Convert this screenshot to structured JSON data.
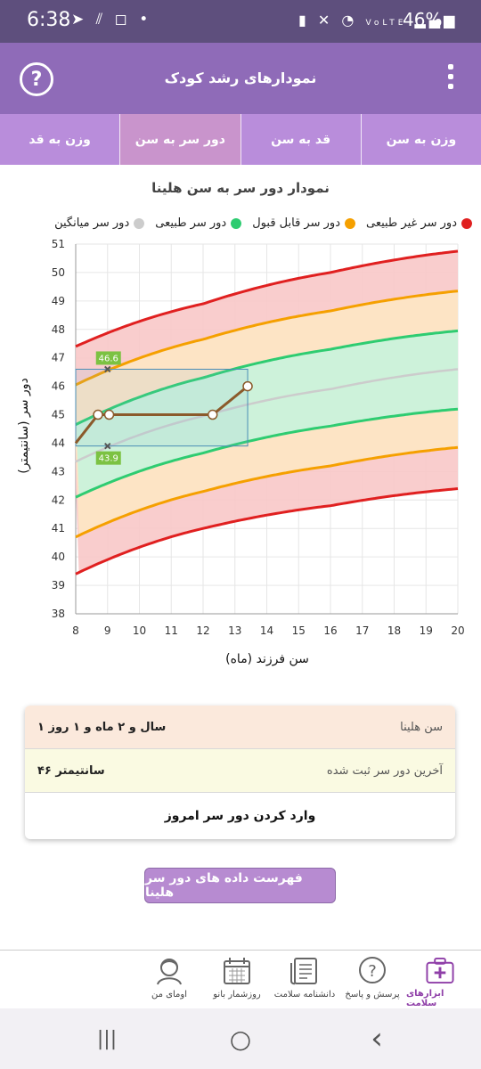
{
  "status_bar": {
    "time": "6:38",
    "left_icons": [
      "telegram-icon",
      "wifi-call-icon",
      "instagram-icon",
      "dot-icon"
    ],
    "right_icons": [
      "nfc-icon",
      "mute-icon",
      "wifi-icon",
      "volte-icon",
      "signal-icon"
    ],
    "battery": "46%"
  },
  "app_bar": {
    "title": "نمودارهای رشد کودک",
    "help_icon": "?",
    "menu_icon": "more-vertical-icon"
  },
  "tabs": [
    {
      "label": "وزن به سن",
      "active": false
    },
    {
      "label": "قد به سن",
      "active": false
    },
    {
      "label": "دور سر به سن",
      "active": true
    },
    {
      "label": "وزن به قد",
      "active": false
    }
  ],
  "chart": {
    "title": "نمودار دور سر به سن هلینا",
    "legend": [
      {
        "label": "دور سر غیر طبیعی",
        "color": "#e02020"
      },
      {
        "label": "دور سر قابل قبول",
        "color": "#f5a000"
      },
      {
        "label": "دور سر طبیعی",
        "color": "#2ecc71"
      },
      {
        "label": "دور سر میانگین",
        "color": "#cccccc"
      }
    ],
    "y_axis_label": "دور سر (سانتیمتر)",
    "x_axis_label": "سن فرزند (ماه)"
  },
  "chart_data": {
    "type": "line",
    "xlim": [
      8,
      20
    ],
    "ylim": [
      38,
      51
    ],
    "x_ticks": [
      8,
      9,
      10,
      11,
      12,
      13,
      14,
      15,
      16,
      17,
      18,
      19,
      20
    ],
    "y_ticks": [
      38,
      39,
      40,
      41,
      42,
      43,
      44,
      45,
      46,
      47,
      48,
      49,
      50,
      51
    ],
    "grid": true,
    "bands": [
      {
        "name": "دور سر غیر طبیعی",
        "color": "#e02020",
        "lower": [
          [
            8,
            39.4
          ],
          [
            12,
            41.0
          ],
          [
            16,
            41.8
          ],
          [
            20,
            42.4
          ]
        ],
        "upper": [
          [
            8,
            47.4
          ],
          [
            12,
            48.9
          ],
          [
            16,
            50.0
          ],
          [
            20,
            50.75
          ]
        ]
      },
      {
        "name": "دور سر قابل قبول",
        "color": "#f5a000",
        "lower": [
          [
            8,
            40.7
          ],
          [
            12,
            42.3
          ],
          [
            16,
            43.2
          ],
          [
            20,
            43.85
          ]
        ],
        "upper": [
          [
            8,
            46.05
          ],
          [
            12,
            47.65
          ],
          [
            16,
            48.65
          ],
          [
            20,
            49.35
          ]
        ]
      },
      {
        "name": "دور سر طبیعی",
        "color": "#2ecc71",
        "lower": [
          [
            8,
            42.1
          ],
          [
            12,
            43.65
          ],
          [
            16,
            44.6
          ],
          [
            20,
            45.2
          ]
        ],
        "upper": [
          [
            8,
            44.65
          ],
          [
            12,
            46.3
          ],
          [
            16,
            47.3
          ],
          [
            20,
            47.95
          ]
        ]
      },
      {
        "name": "دور سر میانگین",
        "color": "#cccccc",
        "values": [
          [
            8,
            43.35
          ],
          [
            12,
            44.95
          ],
          [
            16,
            45.9
          ],
          [
            20,
            46.6
          ]
        ]
      }
    ],
    "series": [
      {
        "name": "هلینا",
        "color": "#8b5a2b",
        "points": [
          [
            8,
            44.0
          ],
          [
            8.7,
            45.0
          ],
          [
            9.05,
            45.0
          ],
          [
            12.3,
            45.0
          ],
          [
            13.4,
            46.0
          ]
        ]
      }
    ],
    "highlight": {
      "x_range": [
        8,
        13.4
      ],
      "y_range": [
        43.9,
        46.6
      ],
      "annotations": [
        {
          "x": 9,
          "y": 46.6,
          "label": "46.6"
        },
        {
          "x": 9,
          "y": 43.9,
          "label": "43.9"
        }
      ]
    }
  },
  "info": {
    "age_label": "سن هلینا",
    "age_value": "۱ سال و ۲ ماه و ۱ روز",
    "last_label": "آخرین دور سر ثبت شده",
    "last_value": "۴۶ سانتیمتر",
    "enter_today": "وارد کردن دور سر امروز"
  },
  "data_list_button": "فهرست داده های دور سر هلینا",
  "bottom_nav": [
    {
      "label": "ابزارهای سلامت",
      "icon": "health-kit-icon",
      "active": true
    },
    {
      "label": "پرسش و پاسخ",
      "icon": "question-icon",
      "active": false
    },
    {
      "label": "دانشنامه سلامت",
      "icon": "encyclopedia-icon",
      "active": false
    },
    {
      "label": "روزشمار بانو",
      "icon": "calendar-icon",
      "active": false
    },
    {
      "label": "اومای من",
      "icon": "profile-icon",
      "active": false
    }
  ],
  "system_nav": {
    "recents": "|||",
    "home": "○",
    "back": "‹"
  }
}
